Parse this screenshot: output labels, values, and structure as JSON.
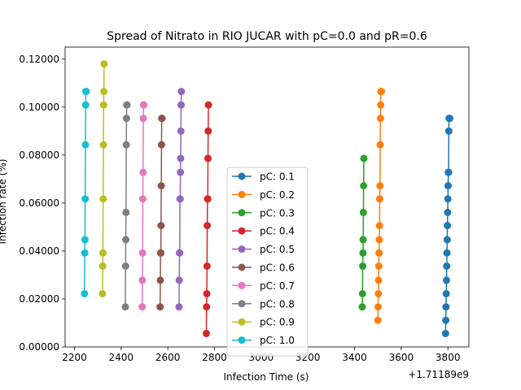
{
  "chart_data": {
    "type": "line",
    "title": "Spread of Nitrato in RIO JUCAR with pC=0.0 and pR=0.6",
    "xlabel": "Infection Time (s)",
    "ylabel": "Infection rate (%)",
    "x_offset_label": "+1.71189e9",
    "xlim": [
      2160,
      3890
    ],
    "ylim": [
      0,
      0.125
    ],
    "xticks": [
      "2200",
      "2400",
      "2600",
      "2800",
      "3000",
      "3200",
      "3400",
      "3600",
      "3800"
    ],
    "yticks": [
      "0.00000",
      "0.02000",
      "0.04000",
      "0.06000",
      "0.08000",
      "0.10000",
      "0.12000"
    ],
    "legend_position": "center",
    "series": [
      {
        "name": "pC: 0.1",
        "color": "#1f77b4",
        "x": [
          3790,
          3791,
          3792,
          3793,
          3794,
          3795,
          3796,
          3797,
          3798,
          3799,
          3800,
          3801,
          3802,
          3803,
          3804,
          3805,
          3808
        ],
        "y": [
          0.0056,
          0.0111,
          0.0167,
          0.0222,
          0.0278,
          0.0337,
          0.0392,
          0.0447,
          0.0506,
          0.0561,
          0.0617,
          0.0672,
          0.0728,
          0.0728,
          0.09,
          0.0953,
          0.0953
        ]
      },
      {
        "name": "pC: 0.2",
        "color": "#ff7f0e",
        "x": [
          3500,
          3501,
          3502,
          3503,
          3504,
          3505,
          3506,
          3507,
          3508,
          3509,
          3510,
          3511,
          3512,
          3513,
          3514,
          3515
        ],
        "y": [
          0.0111,
          0.0167,
          0.0222,
          0.0278,
          0.0337,
          0.0392,
          0.0447,
          0.0506,
          0.0617,
          0.0672,
          0.0843,
          0.0953,
          0.1009,
          0.1065,
          0.1065,
          0.1065
        ]
      },
      {
        "name": "pC: 0.3",
        "color": "#2ca02c",
        "x": [
          3433,
          3434,
          3435,
          3436,
          3437,
          3438,
          3439,
          3440
        ],
        "y": [
          0.0167,
          0.0222,
          0.0337,
          0.0392,
          0.0447,
          0.0561,
          0.0672,
          0.0786
        ]
      },
      {
        "name": "pC: 0.4",
        "color": "#d62728",
        "x": [
          2765,
          2766,
          2767,
          2768,
          2769,
          2770,
          2771,
          2772,
          2773,
          2774
        ],
        "y": [
          0.0056,
          0.0167,
          0.0222,
          0.0337,
          0.0506,
          0.0617,
          0.0617,
          0.0786,
          0.09,
          0.1009
        ]
      },
      {
        "name": "pC: 0.5",
        "color": "#9467bd",
        "x": [
          2648,
          2649,
          2650,
          2651,
          2652,
          2653,
          2654,
          2655,
          2656,
          2657,
          2658
        ],
        "y": [
          0.0167,
          0.0278,
          0.0392,
          0.0392,
          0.0617,
          0.0617,
          0.0728,
          0.0786,
          0.09,
          0.1009,
          0.1065
        ]
      },
      {
        "name": "pC: 0.6",
        "color": "#8c564b",
        "x": [
          2567,
          2568,
          2569,
          2570,
          2571,
          2572,
          2573,
          2574,
          2575
        ],
        "y": [
          0.0167,
          0.0278,
          0.0392,
          0.0392,
          0.0506,
          0.0672,
          0.0843,
          0.0953,
          0.0953
        ]
      },
      {
        "name": "pC: 0.7",
        "color": "#e377c2",
        "x": [
          2490,
          2491,
          2492,
          2493,
          2494,
          2495,
          2496,
          2497
        ],
        "y": [
          0.0167,
          0.0278,
          0.0392,
          0.0617,
          0.0728,
          0.0953,
          0.1009,
          0.1009
        ]
      },
      {
        "name": "pC: 0.8",
        "color": "#7f7f7f",
        "x": [
          2418,
          2419,
          2420,
          2421,
          2422,
          2423,
          2424,
          2425
        ],
        "y": [
          0.0167,
          0.0337,
          0.0447,
          0.0561,
          0.0843,
          0.0953,
          0.1009,
          0.1009
        ]
      },
      {
        "name": "pC: 0.9",
        "color": "#bcbd22",
        "x": [
          2320,
          2321,
          2322,
          2323,
          2324,
          2325,
          2326,
          2327
        ],
        "y": [
          0.0222,
          0.0337,
          0.0392,
          0.0617,
          0.0843,
          0.1009,
          0.1065,
          0.118
        ]
      },
      {
        "name": "pC: 1.0",
        "color": "#17becf",
        "x": [
          2243,
          2244,
          2245,
          2246,
          2247,
          2248,
          2249,
          2250
        ],
        "y": [
          0.0222,
          0.0392,
          0.0447,
          0.0617,
          0.0843,
          0.1009,
          0.1065,
          0.1065
        ]
      }
    ]
  }
}
